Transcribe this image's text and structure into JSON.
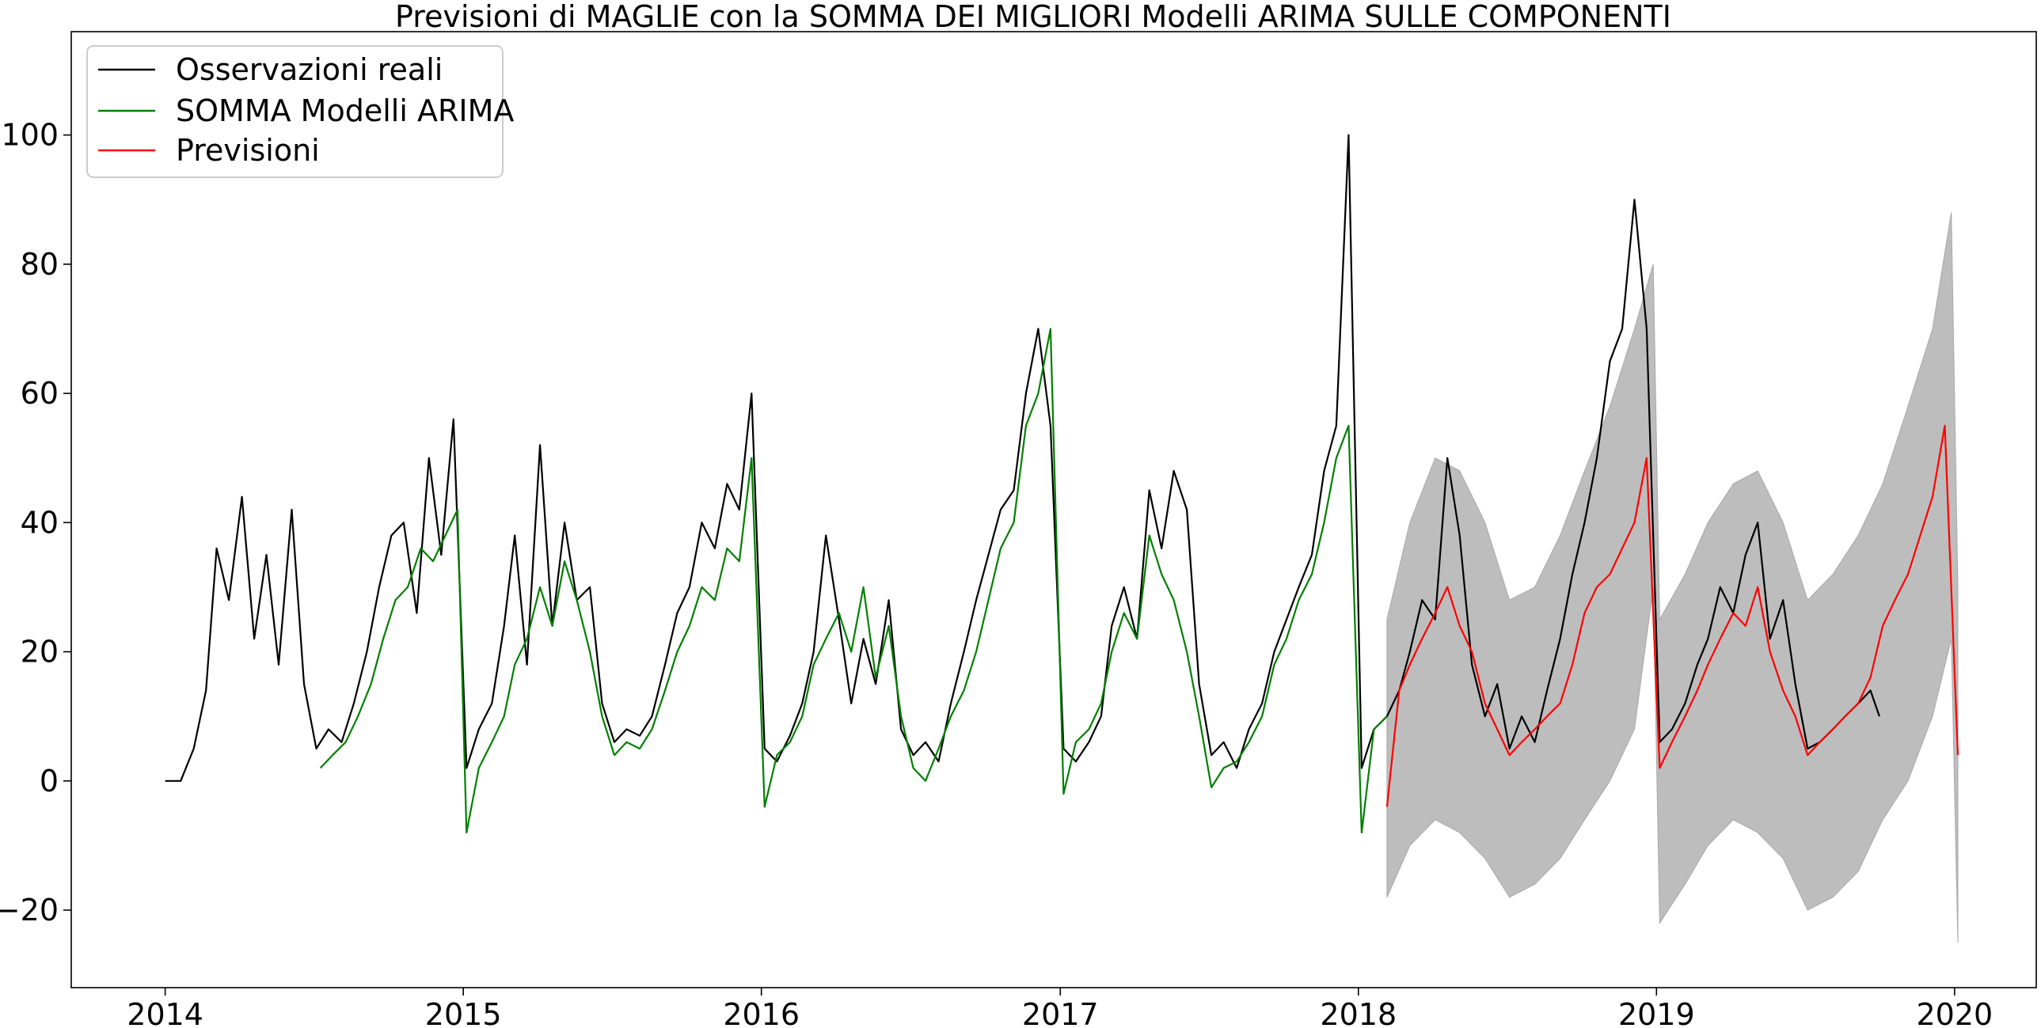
{
  "chart_data": {
    "type": "line",
    "title": "Previsioni di MAGLIE con la SOMMA DEI MIGLIORI Modelli ARIMA SULLE COMPONENTI",
    "xlabel": "",
    "ylabel": "",
    "xlim": [
      "2013-09-08",
      "2020-04-10"
    ],
    "ylim": [
      -32,
      116
    ],
    "x_ticks": [
      "2014",
      "2015",
      "2016",
      "2017",
      "2018",
      "2019",
      "2020"
    ],
    "y_ticks": [
      "−20",
      "0",
      "20",
      "40",
      "60",
      "80",
      "100"
    ],
    "grid": false,
    "legend_position": "top-left",
    "colors": {
      "observed": "#000000",
      "arima_sum": "#008000",
      "forecast": "#ff0000",
      "interval": "#bdbdbd"
    },
    "series": [
      {
        "name": "Osservazioni reali",
        "x": [
          "2014-01-01",
          "2014-01-20",
          "2014-02-05",
          "2014-02-20",
          "2014-03-05",
          "2014-03-20",
          "2014-04-05",
          "2014-04-20",
          "2014-05-05",
          "2014-05-20",
          "2014-06-05",
          "2014-06-20",
          "2014-07-05",
          "2014-07-20",
          "2014-08-05",
          "2014-08-20",
          "2014-09-05",
          "2014-09-20",
          "2014-10-05",
          "2014-10-20",
          "2014-11-05",
          "2014-11-20",
          "2014-12-05",
          "2014-12-20",
          "2015-01-05",
          "2015-01-20",
          "2015-02-05",
          "2015-02-20",
          "2015-03-05",
          "2015-03-20",
          "2015-04-05",
          "2015-04-20",
          "2015-05-05",
          "2015-05-20",
          "2015-06-05",
          "2015-06-20",
          "2015-07-05",
          "2015-07-20",
          "2015-08-05",
          "2015-08-20",
          "2015-09-05",
          "2015-09-20",
          "2015-10-05",
          "2015-10-20",
          "2015-11-05",
          "2015-11-20",
          "2015-12-05",
          "2015-12-20",
          "2016-01-05",
          "2016-01-20",
          "2016-02-05",
          "2016-02-20",
          "2016-03-05",
          "2016-03-20",
          "2016-04-05",
          "2016-04-20",
          "2016-05-05",
          "2016-05-20",
          "2016-06-05",
          "2016-06-20",
          "2016-07-05",
          "2016-07-20",
          "2016-08-05",
          "2016-08-20",
          "2016-09-05",
          "2016-09-20",
          "2016-10-05",
          "2016-10-20",
          "2016-11-05",
          "2016-11-20",
          "2016-12-05",
          "2016-12-20",
          "2017-01-05",
          "2017-01-20",
          "2017-02-05",
          "2017-02-20",
          "2017-03-05",
          "2017-03-20",
          "2017-04-05",
          "2017-04-20",
          "2017-05-05",
          "2017-05-20",
          "2017-06-05",
          "2017-06-20",
          "2017-07-05",
          "2017-07-20",
          "2017-08-05",
          "2017-08-20",
          "2017-09-05",
          "2017-09-20",
          "2017-10-05",
          "2017-10-20",
          "2017-11-05",
          "2017-11-20",
          "2017-12-05",
          "2017-12-20",
          "2018-01-05",
          "2018-01-20",
          "2018-02-05",
          "2018-02-20",
          "2018-03-05",
          "2018-03-20",
          "2018-04-05",
          "2018-04-20",
          "2018-05-05",
          "2018-05-20",
          "2018-06-05",
          "2018-06-20",
          "2018-07-05",
          "2018-07-20",
          "2018-08-05",
          "2018-08-20",
          "2018-09-05",
          "2018-09-20",
          "2018-10-05",
          "2018-10-20",
          "2018-11-05",
          "2018-11-20",
          "2018-12-05",
          "2018-12-20",
          "2019-01-05",
          "2019-01-20",
          "2019-02-05",
          "2019-02-20",
          "2019-03-05",
          "2019-03-20",
          "2019-04-05",
          "2019-04-20",
          "2019-05-05",
          "2019-05-20",
          "2019-06-05",
          "2019-06-20",
          "2019-07-05",
          "2019-07-20",
          "2019-08-05",
          "2019-08-20",
          "2019-09-05",
          "2019-09-20",
          "2019-10-01"
        ],
        "values": [
          0,
          0,
          5,
          14,
          36,
          28,
          44,
          22,
          35,
          18,
          42,
          15,
          5,
          8,
          6,
          12,
          20,
          30,
          38,
          40,
          26,
          50,
          35,
          56,
          2,
          8,
          12,
          24,
          38,
          18,
          52,
          24,
          40,
          28,
          30,
          12,
          6,
          8,
          7,
          10,
          18,
          26,
          30,
          40,
          36,
          46,
          42,
          60,
          5,
          3,
          7,
          12,
          20,
          38,
          25,
          12,
          22,
          15,
          28,
          8,
          4,
          6,
          3,
          12,
          20,
          28,
          35,
          42,
          45,
          60,
          70,
          55,
          5,
          3,
          6,
          10,
          24,
          30,
          22,
          45,
          36,
          48,
          42,
          15,
          4,
          6,
          2,
          8,
          12,
          20,
          25,
          30,
          35,
          48,
          55,
          100,
          2,
          8,
          10,
          14,
          20,
          28,
          25,
          50,
          38,
          18,
          10,
          15,
          5,
          10,
          6,
          14,
          22,
          32,
          40,
          50,
          65,
          70,
          90,
          70,
          6,
          8,
          12,
          18,
          22,
          30,
          26,
          35,
          40,
          22,
          28,
          15,
          5,
          6,
          8,
          10,
          12,
          14,
          10
        ]
      },
      {
        "name": "SOMMA Modelli ARIMA",
        "x": [
          "2014-07-10",
          "2014-07-25",
          "2014-08-10",
          "2014-08-25",
          "2014-09-10",
          "2014-09-25",
          "2014-10-10",
          "2014-10-25",
          "2014-11-10",
          "2014-11-25",
          "2014-12-10",
          "2014-12-25",
          "2015-01-05",
          "2015-01-20",
          "2015-02-05",
          "2015-02-20",
          "2015-03-05",
          "2015-03-20",
          "2015-04-05",
          "2015-04-20",
          "2015-05-05",
          "2015-05-20",
          "2015-06-05",
          "2015-06-20",
          "2015-07-05",
          "2015-07-20",
          "2015-08-05",
          "2015-08-20",
          "2015-09-05",
          "2015-09-20",
          "2015-10-05",
          "2015-10-20",
          "2015-11-05",
          "2015-11-20",
          "2015-12-05",
          "2015-12-20",
          "2016-01-05",
          "2016-01-20",
          "2016-02-05",
          "2016-02-20",
          "2016-03-05",
          "2016-03-20",
          "2016-04-05",
          "2016-04-20",
          "2016-05-05",
          "2016-05-20",
          "2016-06-05",
          "2016-06-20",
          "2016-07-05",
          "2016-07-20",
          "2016-08-05",
          "2016-08-20",
          "2016-09-05",
          "2016-09-20",
          "2016-10-05",
          "2016-10-20",
          "2016-11-05",
          "2016-11-20",
          "2016-12-05",
          "2016-12-20",
          "2017-01-05",
          "2017-01-20",
          "2017-02-05",
          "2017-02-20",
          "2017-03-05",
          "2017-03-20",
          "2017-04-05",
          "2017-04-20",
          "2017-05-05",
          "2017-05-20",
          "2017-06-05",
          "2017-06-20",
          "2017-07-05",
          "2017-07-20",
          "2017-08-05",
          "2017-08-20",
          "2017-09-05",
          "2017-09-20",
          "2017-10-05",
          "2017-10-20",
          "2017-11-05",
          "2017-11-20",
          "2017-12-05",
          "2017-12-20",
          "2018-01-05",
          "2018-01-20",
          "2018-02-05"
        ],
        "values": [
          2,
          4,
          6,
          10,
          15,
          22,
          28,
          30,
          36,
          34,
          38,
          42,
          -8,
          2,
          6,
          10,
          18,
          22,
          30,
          24,
          34,
          28,
          20,
          10,
          4,
          6,
          5,
          8,
          14,
          20,
          24,
          30,
          28,
          36,
          34,
          50,
          -4,
          4,
          6,
          10,
          18,
          22,
          26,
          20,
          30,
          16,
          24,
          10,
          2,
          0,
          5,
          10,
          14,
          20,
          28,
          36,
          40,
          55,
          60,
          70,
          -2,
          6,
          8,
          12,
          20,
          26,
          22,
          38,
          32,
          28,
          20,
          10,
          -1,
          2,
          3,
          6,
          10,
          18,
          22,
          28,
          32,
          40,
          50,
          55,
          -8,
          8,
          10
        ]
      },
      {
        "name": "Previsioni",
        "x": [
          "2018-02-05",
          "2018-02-20",
          "2018-03-05",
          "2018-03-20",
          "2018-04-05",
          "2018-04-20",
          "2018-05-05",
          "2018-05-20",
          "2018-06-05",
          "2018-06-20",
          "2018-07-05",
          "2018-07-20",
          "2018-08-05",
          "2018-08-20",
          "2018-09-05",
          "2018-09-20",
          "2018-10-05",
          "2018-10-20",
          "2018-11-05",
          "2018-11-20",
          "2018-12-05",
          "2018-12-20",
          "2019-01-05",
          "2019-01-20",
          "2019-02-05",
          "2019-02-20",
          "2019-03-05",
          "2019-03-20",
          "2019-04-05",
          "2019-04-20",
          "2019-05-05",
          "2019-05-20",
          "2019-06-05",
          "2019-06-20",
          "2019-07-05",
          "2019-07-20",
          "2019-08-05",
          "2019-08-20",
          "2019-09-05",
          "2019-09-20",
          "2019-10-05",
          "2019-10-20",
          "2019-11-05",
          "2019-11-20",
          "2019-12-05",
          "2019-12-20",
          "2020-01-05"
        ],
        "values": [
          -4,
          14,
          18,
          22,
          26,
          30,
          24,
          20,
          12,
          8,
          4,
          6,
          8,
          10,
          12,
          18,
          26,
          30,
          32,
          36,
          40,
          50,
          2,
          6,
          10,
          14,
          18,
          22,
          26,
          24,
          30,
          20,
          14,
          10,
          4,
          6,
          8,
          10,
          12,
          16,
          24,
          28,
          32,
          38,
          44,
          55,
          4
        ]
      }
    ],
    "interval": {
      "x": [
        "2018-02-05",
        "2018-03-05",
        "2018-04-05",
        "2018-05-05",
        "2018-06-05",
        "2018-07-05",
        "2018-08-05",
        "2018-09-05",
        "2018-10-05",
        "2018-11-05",
        "2018-12-05",
        "2018-12-28",
        "2019-01-05",
        "2019-02-05",
        "2019-03-05",
        "2019-04-05",
        "2019-05-05",
        "2019-06-05",
        "2019-07-05",
        "2019-08-05",
        "2019-09-05",
        "2019-10-05",
        "2019-11-05",
        "2019-12-05",
        "2019-12-28",
        "2020-01-05"
      ],
      "lower": [
        -18,
        -10,
        -6,
        -8,
        -12,
        -18,
        -16,
        -12,
        -6,
        0,
        8,
        30,
        -22,
        -16,
        -10,
        -6,
        -8,
        -12,
        -20,
        -18,
        -14,
        -6,
        0,
        10,
        22,
        -25
      ],
      "upper": [
        25,
        40,
        50,
        48,
        40,
        28,
        30,
        38,
        48,
        58,
        70,
        80,
        25,
        32,
        40,
        46,
        48,
        40,
        28,
        32,
        38,
        46,
        58,
        70,
        88,
        30
      ]
    }
  }
}
